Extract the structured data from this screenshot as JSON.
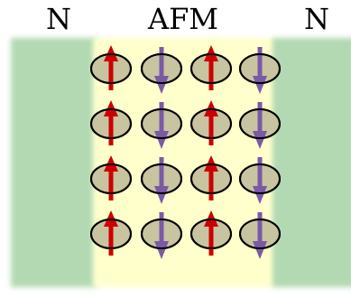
{
  "labels": {
    "left": "N",
    "center": "AFM",
    "right": "N"
  },
  "regions": [
    {
      "name": "left-normal-region",
      "color": "#b3d9b3"
    },
    {
      "name": "afm-region",
      "color": "#ffffcc"
    },
    {
      "name": "right-normal-region",
      "color": "#b3d9b3"
    }
  ],
  "lattice": {
    "rows": 4,
    "columns": 4,
    "spins": [
      [
        "up",
        "down",
        "up",
        "down"
      ],
      [
        "up",
        "down",
        "up",
        "down"
      ],
      [
        "up",
        "down",
        "up",
        "down"
      ],
      [
        "up",
        "down",
        "up",
        "down"
      ]
    ]
  },
  "colors": {
    "site_fill": "#c8c4a0",
    "site_stroke": "#000000",
    "spin_up": "#cc0000",
    "spin_down": "#7a5aa6"
  }
}
